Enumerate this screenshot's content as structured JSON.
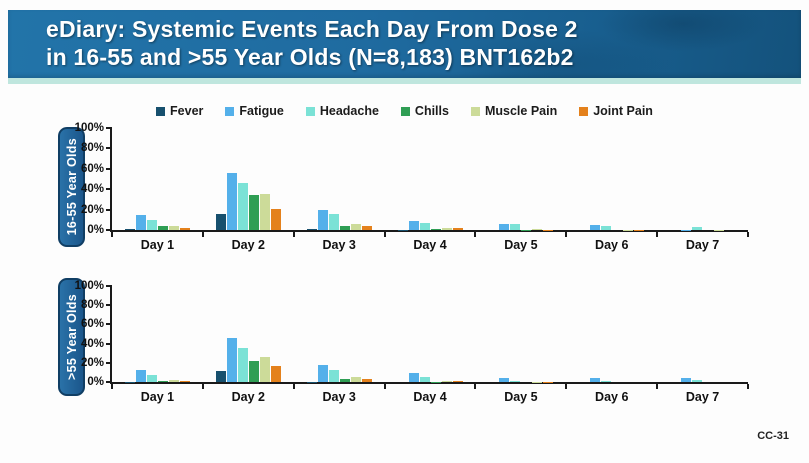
{
  "slide": {
    "title_line1": "eDiary: Systemic Events Each Day From Dose 2",
    "title_line2": "in 16-55 and >55 Year Olds (N=8,183) BNT162b2",
    "footer_code": "CC-31"
  },
  "colors": {
    "header_blue": "#1f6ba0",
    "teal_strip": "#bfe6de",
    "pill_blue": "#1b568b",
    "pill_border": "#103e64",
    "axis": "#1a1a1a",
    "fever": "#17506e",
    "fatigue": "#54b0ea",
    "headache": "#7be2d6",
    "chills": "#2f9e54",
    "muscle_pain": "#ccdb99",
    "joint_pain": "#e4811c"
  },
  "legend": [
    {
      "label": "Fever",
      "color": "#17506e"
    },
    {
      "label": "Fatigue",
      "color": "#54b0ea"
    },
    {
      "label": "Headache",
      "color": "#7be2d6"
    },
    {
      "label": "Chills",
      "color": "#2f9e54"
    },
    {
      "label": "Muscle Pain",
      "color": "#ccdb99"
    },
    {
      "label": "Joint Pain",
      "color": "#e4811c"
    }
  ],
  "chart_data": [
    {
      "type": "bar",
      "title": "16-55 Year Olds",
      "categories": [
        "Day 1",
        "Day 2",
        "Day 3",
        "Day 4",
        "Day 5",
        "Day 6",
        "Day 7"
      ],
      "series": [
        {
          "name": "Fever",
          "color": "#17506e",
          "values": [
            1,
            16,
            1,
            0.5,
            0,
            0,
            0
          ]
        },
        {
          "name": "Fatigue",
          "color": "#54b0ea",
          "values": [
            15,
            56,
            20,
            9,
            6,
            5,
            0.5
          ]
        },
        {
          "name": "Headache",
          "color": "#7be2d6",
          "values": [
            10,
            46,
            16,
            7,
            6,
            4,
            3
          ]
        },
        {
          "name": "Chills",
          "color": "#2f9e54",
          "values": [
            4,
            34,
            4,
            1,
            0.5,
            0,
            0
          ]
        },
        {
          "name": "Muscle Pain",
          "color": "#ccdb99",
          "values": [
            4,
            35,
            6,
            2,
            1,
            0.5,
            0.5
          ]
        },
        {
          "name": "Joint Pain",
          "color": "#e4811c",
          "values": [
            2,
            21,
            4,
            1.5,
            0.5,
            0.5,
            0
          ]
        }
      ],
      "y_ticks": [
        "100%",
        "80%",
        "60%",
        "40%",
        "20%",
        "0%"
      ],
      "ylim": [
        0,
        100
      ],
      "grid": false,
      "legend_position": "top"
    },
    {
      "type": "bar",
      "title": ">55 Year Olds",
      "categories": [
        "Day 1",
        "Day 2",
        "Day 3",
        "Day 4",
        "Day 5",
        "Day 6",
        "Day 7"
      ],
      "series": [
        {
          "name": "Fever",
          "color": "#17506e",
          "values": [
            0.5,
            11,
            0.5,
            0,
            0,
            0,
            0
          ]
        },
        {
          "name": "Fatigue",
          "color": "#54b0ea",
          "values": [
            12,
            46,
            18,
            9,
            4,
            4,
            4
          ]
        },
        {
          "name": "Headache",
          "color": "#7be2d6",
          "values": [
            7,
            35,
            13,
            5,
            1.5,
            1,
            2
          ]
        },
        {
          "name": "Chills",
          "color": "#2f9e54",
          "values": [
            1,
            22,
            3,
            0.5,
            0,
            0,
            0
          ]
        },
        {
          "name": "Muscle Pain",
          "color": "#ccdb99",
          "values": [
            2,
            26,
            5,
            1,
            0.5,
            0,
            0
          ]
        },
        {
          "name": "Joint Pain",
          "color": "#e4811c",
          "values": [
            1.5,
            17,
            3,
            1,
            0.5,
            0,
            0
          ]
        }
      ],
      "y_ticks": [
        "100%",
        "80%",
        "60%",
        "40%",
        "20%",
        "0%"
      ],
      "ylim": [
        0,
        100
      ],
      "grid": false,
      "legend_position": "top"
    }
  ]
}
